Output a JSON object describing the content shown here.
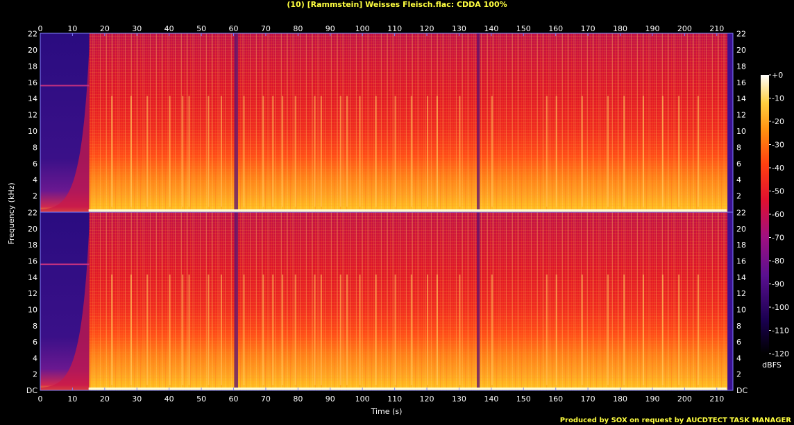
{
  "chart_data": {
    "type": "heatmap",
    "title": "(10) [Rammstein] Weisses Fleisch.flac: CDDA 100%",
    "xlabel": "Time (s)",
    "ylabel": "Frequency (kHz)",
    "colorbar_label": "dBFS",
    "footer": "Produced by SOX on request by AUCDTECT TASK MANAGER",
    "xlim": [
      0,
      215
    ],
    "ylim": [
      0,
      22.05
    ],
    "x_ticks": [
      "0",
      "10",
      "20",
      "30",
      "40",
      "50",
      "60",
      "70",
      "80",
      "90",
      "100",
      "110",
      "120",
      "130",
      "140",
      "150",
      "160",
      "170",
      "180",
      "190",
      "200",
      "210"
    ],
    "y_ticks_upper": [
      "22",
      "20",
      "18",
      "16",
      "14",
      "12",
      "10",
      "8",
      "6",
      "4",
      "2"
    ],
    "y_ticks_lower": [
      "22",
      "20",
      "18",
      "16",
      "14",
      "12",
      "10",
      "8",
      "6",
      "4",
      "2",
      "DC"
    ],
    "colorbar": {
      "range": [
        -120,
        0
      ],
      "ticks": [
        "+0",
        "-10",
        "-20",
        "-30",
        "-40",
        "-50",
        "-60",
        "-70",
        "-80",
        "-90",
        "-100",
        "-110",
        "-120"
      ]
    },
    "series": [
      {
        "values": [
          {
            "x": 0,
            "level": -95
          },
          {
            "x": 15,
            "level": -95
          },
          {
            "x": 15.5,
            "level": -50
          },
          {
            "x": 60,
            "level": -55
          },
          {
            "x": 61,
            "level": -75
          },
          {
            "x": 62,
            "level": -50
          },
          {
            "x": 135,
            "level": -50
          },
          {
            "x": 136,
            "level": -80
          },
          {
            "x": 137,
            "level": -48
          },
          {
            "x": 213,
            "level": -50
          },
          {
            "x": 214,
            "level": -100
          }
        ]
      },
      {
        "values": [
          {
            "x": 0,
            "level": -95
          },
          {
            "x": 15,
            "level": -95
          },
          {
            "x": 15.5,
            "level": -50
          },
          {
            "x": 60,
            "level": -55
          },
          {
            "x": 61,
            "level": -75
          },
          {
            "x": 62,
            "level": -50
          },
          {
            "x": 135,
            "level": -50
          },
          {
            "x": 136,
            "level": -80
          },
          {
            "x": 137,
            "level": -48
          },
          {
            "x": 213,
            "level": -50
          },
          {
            "x": 214,
            "level": -100
          }
        ]
      }
    ],
    "colors": {
      "title": "#ffff40",
      "frame": "#8080ff",
      "text": "#ffffff"
    }
  }
}
